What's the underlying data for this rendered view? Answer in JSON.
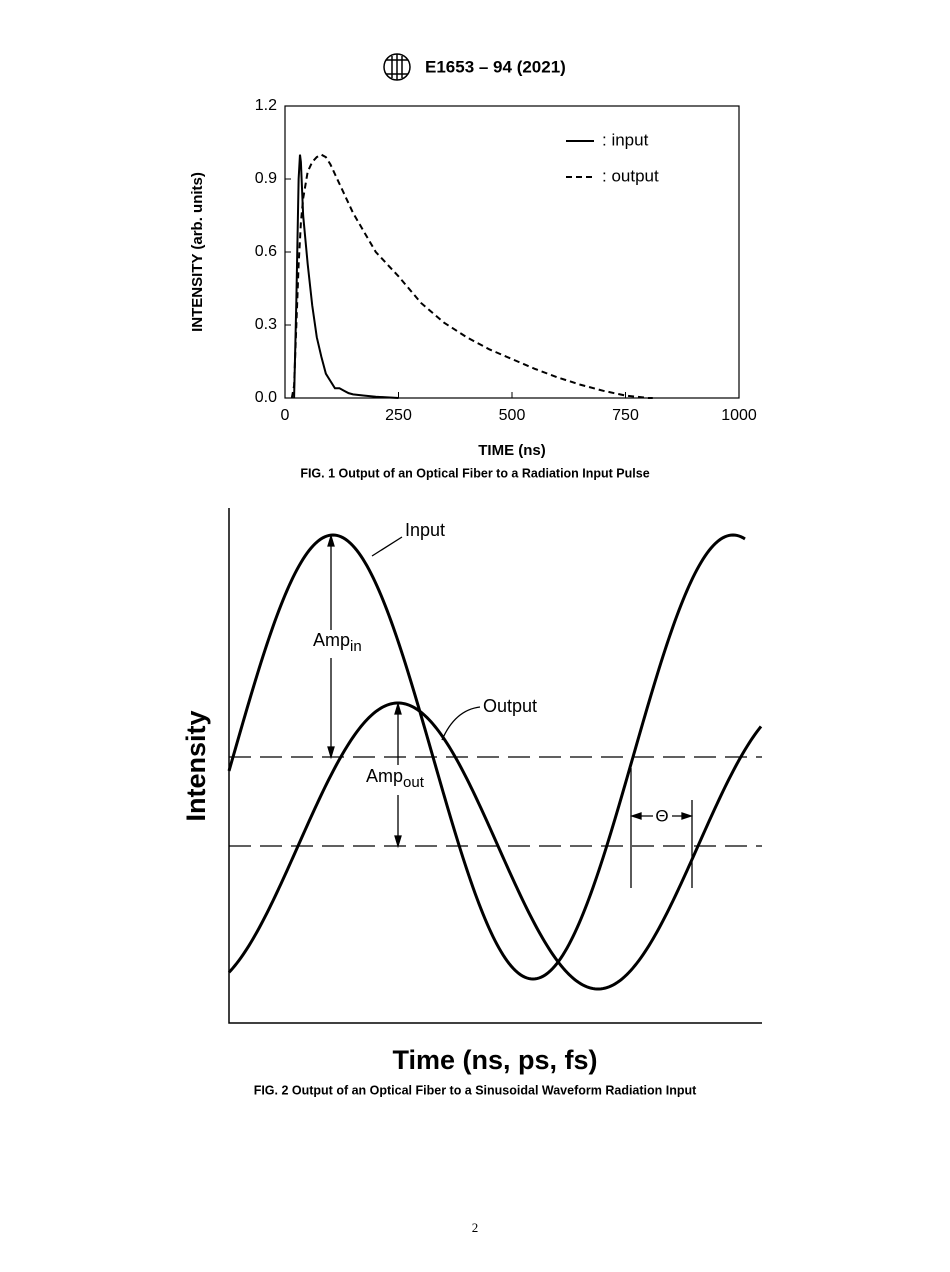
{
  "header": {
    "designation": "E1653 – 94 (2021)"
  },
  "chart_data": {
    "type": "line",
    "caption": "FIG. 1 Output of an Optical Fiber to a Radiation Input Pulse",
    "xlabel": "TIME (ns)",
    "ylabel": "INTENSITY (arb. units)",
    "xlim": [
      0,
      1000
    ],
    "ylim": [
      0,
      1.2
    ],
    "xticks": [
      0,
      250,
      500,
      750,
      1000
    ],
    "yticks": [
      {
        "value": 0,
        "label": "0.0"
      },
      0.3,
      0.6,
      0.9,
      1.2
    ],
    "legend": "upper right",
    "x": [
      15,
      20,
      25,
      30,
      33,
      35,
      40,
      50,
      60,
      70,
      80,
      90,
      100,
      110,
      120,
      130,
      140,
      150,
      175,
      200,
      250,
      300,
      350,
      400,
      450,
      500,
      550,
      600,
      650,
      700,
      750,
      800,
      810
    ],
    "series": [
      {
        "name": ": input",
        "color": "#000000",
        "dash": "solid",
        "values": [
          null,
          0,
          0.4,
          0.9,
          1.0,
          0.97,
          0.75,
          0.55,
          0.38,
          0.25,
          0.17,
          0.1,
          0.07,
          0.04,
          0.04,
          0.03,
          0.02,
          0.015,
          0.01,
          0.005,
          0,
          null,
          null,
          null,
          null,
          null,
          null,
          null,
          null,
          null,
          null,
          null,
          null
        ]
      },
      {
        "name": ": output",
        "color": "#000000",
        "dash": "dashed",
        "values": [
          0,
          0.05,
          0.3,
          0.55,
          0.65,
          0.72,
          0.82,
          0.93,
          0.97,
          0.99,
          1.0,
          0.99,
          0.96,
          0.92,
          0.88,
          0.84,
          0.8,
          0.76,
          0.68,
          0.6,
          0.5,
          0.39,
          0.31,
          0.25,
          0.2,
          0.16,
          0.12,
          0.085,
          0.055,
          0.03,
          0.01,
          0,
          0
        ]
      }
    ]
  },
  "figure2": {
    "caption": "FIG. 2 Output of an Optical Fiber to a Sinusoidal Waveform Radiation Input",
    "xlabel": "Time (ns, ps, fs)",
    "ylabel": "Intensity",
    "input_label": "Input",
    "output_label": "Output",
    "amp_in": {
      "base": "Amp",
      "sub": "in"
    },
    "amp_out": {
      "base": "Amp",
      "sub": "out"
    },
    "phase_label": "Θ"
  },
  "page_number": "2"
}
